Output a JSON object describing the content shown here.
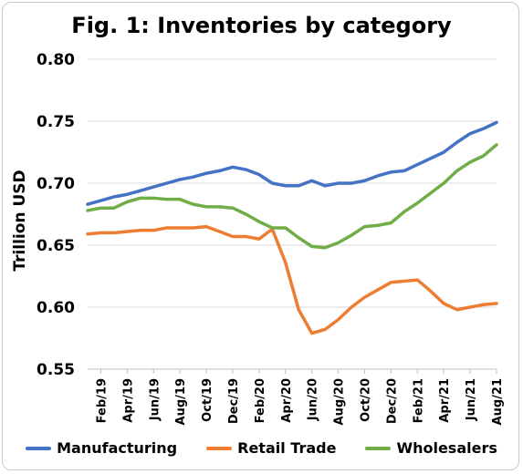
{
  "chart_data": {
    "type": "line",
    "title": "Fig. 1: Inventories by category",
    "ylabel": "Trillion USD",
    "xlabel": "",
    "ylim": [
      0.55,
      0.8
    ],
    "y_ticks": [
      "0.80",
      "0.75",
      "0.70",
      "0.65",
      "0.60",
      "0.55"
    ],
    "y_tick_values": [
      0.8,
      0.75,
      0.7,
      0.65,
      0.6,
      0.55
    ],
    "x": [
      "Jan/19",
      "Feb/19",
      "Mar/19",
      "Apr/19",
      "May/19",
      "Jun/19",
      "Jul/19",
      "Aug/19",
      "Sep/19",
      "Oct/19",
      "Nov/19",
      "Dec/19",
      "Jan/20",
      "Feb/20",
      "Mar/20",
      "Apr/20",
      "May/20",
      "Jun/20",
      "Jul/20",
      "Aug/20",
      "Sep/20",
      "Oct/20",
      "Nov/20",
      "Dec/20",
      "Jan/21",
      "Feb/21",
      "Mar/21",
      "Apr/21",
      "May/21",
      "Jun/21",
      "Jul/21",
      "Aug/21"
    ],
    "x_tick_labels": [
      "Feb/19",
      "Apr/19",
      "Jun/19",
      "Aug/19",
      "Oct/19",
      "Dec/19",
      "Feb/20",
      "Apr/20",
      "Jun/20",
      "Aug/20",
      "Oct/20",
      "Dec/20",
      "Feb/21",
      "Apr/21",
      "Jun/21",
      "Aug/21"
    ],
    "grid": true,
    "legend_position": "bottom",
    "series": [
      {
        "name": "Manufacturing",
        "color": "#4472C4",
        "values": [
          0.683,
          0.686,
          0.689,
          0.691,
          0.694,
          0.697,
          0.7,
          0.703,
          0.705,
          0.708,
          0.71,
          0.713,
          0.711,
          0.707,
          0.7,
          0.698,
          0.698,
          0.702,
          0.698,
          0.7,
          0.7,
          0.702,
          0.706,
          0.709,
          0.71,
          0.715,
          0.72,
          0.725,
          0.733,
          0.74,
          0.744,
          0.749
        ]
      },
      {
        "name": "Retail Trade",
        "color": "#ED7D31",
        "values": [
          0.659,
          0.66,
          0.66,
          0.661,
          0.662,
          0.662,
          0.664,
          0.664,
          0.664,
          0.665,
          0.661,
          0.657,
          0.657,
          0.655,
          0.663,
          0.636,
          0.598,
          0.579,
          0.582,
          0.59,
          0.6,
          0.608,
          0.614,
          0.62,
          0.621,
          0.622,
          0.613,
          0.603,
          0.598,
          0.6,
          0.602,
          0.603
        ]
      },
      {
        "name": "Wholesalers",
        "color": "#70AD47",
        "values": [
          0.678,
          0.68,
          0.68,
          0.685,
          0.688,
          0.688,
          0.687,
          0.687,
          0.683,
          0.681,
          0.681,
          0.68,
          0.675,
          0.669,
          0.664,
          0.664,
          0.656,
          0.649,
          0.648,
          0.652,
          0.658,
          0.665,
          0.666,
          0.668,
          0.677,
          0.684,
          0.692,
          0.7,
          0.71,
          0.717,
          0.722,
          0.731
        ]
      }
    ]
  }
}
